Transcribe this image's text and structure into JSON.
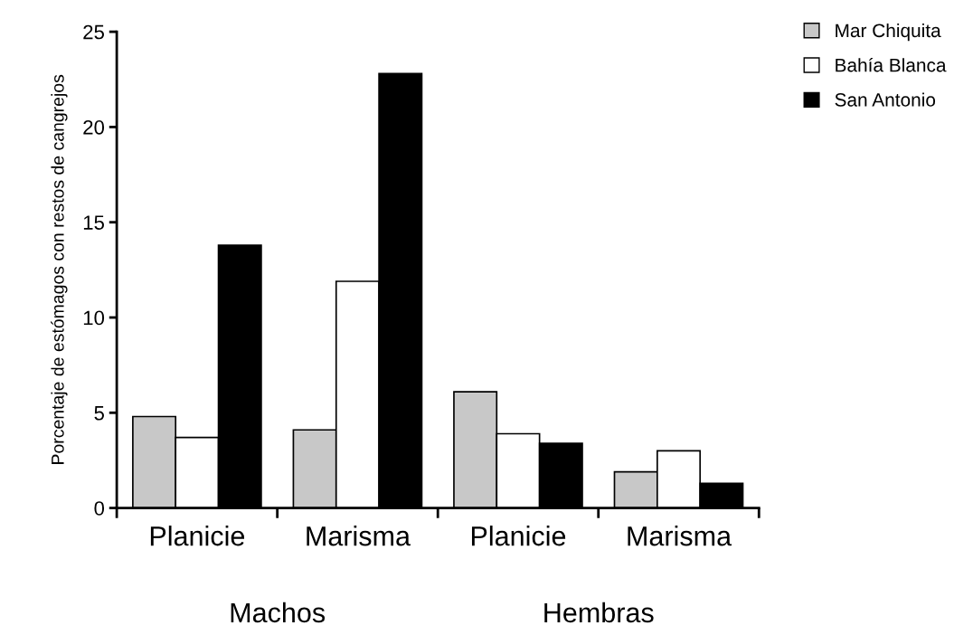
{
  "chart_data": {
    "type": "bar",
    "ylabel": "Porcentaje de estómagos con restos de cangrejos",
    "categories": [
      "Planicie",
      "Marisma",
      "Planicie",
      "Marisma"
    ],
    "series": [
      {
        "name": "Mar Chiquita",
        "color": "#c8c8c8",
        "values": [
          4.8,
          4.1,
          6.1,
          1.9
        ]
      },
      {
        "name": "Bahía Blanca",
        "color": "#ffffff",
        "values": [
          3.7,
          11.9,
          3.9,
          3.0
        ]
      },
      {
        "name": "San Antonio",
        "color": "#000000",
        "values": [
          13.8,
          22.8,
          3.4,
          1.3
        ]
      }
    ],
    "annotations": [
      "Machos",
      "Hembras"
    ],
    "ylim": [
      0,
      25
    ],
    "yticks": [
      0,
      5,
      10,
      15,
      20,
      25
    ],
    "grid": false,
    "legend": "top right"
  }
}
